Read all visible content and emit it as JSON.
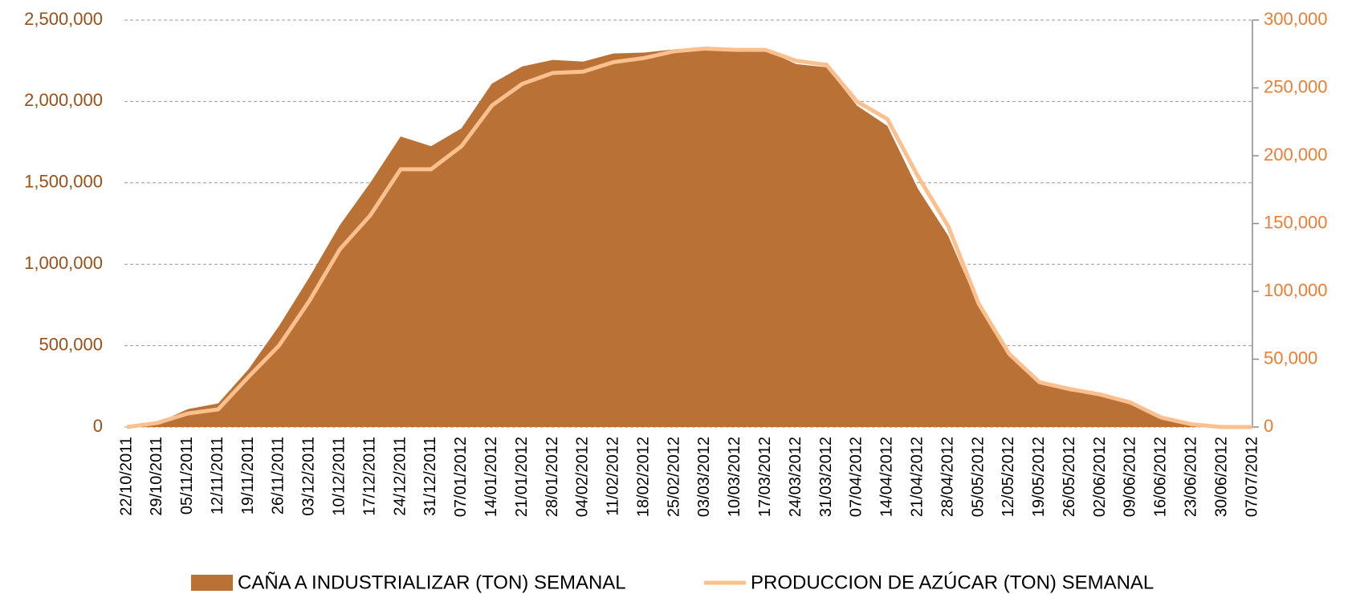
{
  "chart_data": {
    "type": "area-line",
    "categories": [
      "22/10/2011",
      "29/10/2011",
      "05/11/2011",
      "12/11/2011",
      "19/11/2011",
      "26/11/2011",
      "03/12/2011",
      "10/12/2011",
      "17/12/2011",
      "24/12/2011",
      "31/12/2011",
      "07/01/2012",
      "14/01/2012",
      "21/01/2012",
      "28/01/2012",
      "04/02/2012",
      "11/02/2012",
      "18/02/2012",
      "25/02/2012",
      "03/03/2012",
      "10/03/2012",
      "17/03/2012",
      "24/03/2012",
      "31/03/2012",
      "07/04/2012",
      "14/04/2012",
      "21/04/2012",
      "28/04/2012",
      "05/05/2012",
      "12/05/2012",
      "19/05/2012",
      "26/05/2012",
      "02/06/2012",
      "09/06/2012",
      "16/06/2012",
      "23/06/2012",
      "30/06/2012",
      "07/07/2012"
    ],
    "series": [
      {
        "name": "CAÑA A INDUSTRIALIZAR (TON) SEMANAL",
        "color": "#b97135",
        "kind": "area",
        "values": [
          0,
          25000,
          110000,
          145000,
          355000,
          620000,
          920000,
          1240000,
          1500000,
          1785000,
          1725000,
          1835000,
          2110000,
          2215000,
          2255000,
          2245000,
          2295000,
          2300000,
          2320000,
          2330000,
          2320000,
          2315000,
          2230000,
          2210000,
          1975000,
          1850000,
          1465000,
          1175000,
          740000,
          445000,
          265000,
          220000,
          200000,
          160000,
          60000,
          20000,
          5000,
          0
        ]
      },
      {
        "name": "PRODUCCION DE AZÚCAR (TON) SEMANAL",
        "color": "#fbc08d",
        "kind": "line",
        "axis": "y2",
        "values": [
          0,
          3000,
          10000,
          13000,
          37000,
          60000,
          93000,
          131000,
          156000,
          190000,
          190000,
          207000,
          237000,
          253000,
          261000,
          262000,
          269000,
          272000,
          277000,
          279000,
          278000,
          278000,
          270000,
          267000,
          240000,
          227000,
          185000,
          148000,
          91000,
          54000,
          33000,
          28000,
          24000,
          18000,
          7000,
          2000,
          0,
          0
        ]
      }
    ],
    "ylim": [
      0,
      2500000
    ],
    "yticks": [
      0,
      {
        "value": 500000,
        "label": "500,000"
      },
      {
        "value": 1000000,
        "label": "1,000,000"
      },
      {
        "value": 1500000,
        "label": "1,500,000"
      },
      {
        "value": 2000000,
        "label": "2,000,000"
      },
      {
        "value": 2500000,
        "label": "2,500,000"
      }
    ],
    "y2lim": [
      0,
      300000
    ],
    "y2ticks": [
      0,
      {
        "value": 50000,
        "label": "50,000"
      },
      {
        "value": 100000,
        "label": "100,000"
      },
      {
        "value": 150000,
        "label": "150,000"
      },
      {
        "value": 200000,
        "label": "200,000"
      },
      {
        "value": 250000,
        "label": "250,000"
      },
      {
        "value": 300000,
        "label": "300,000"
      }
    ],
    "grid": true,
    "legend": "bottom"
  }
}
